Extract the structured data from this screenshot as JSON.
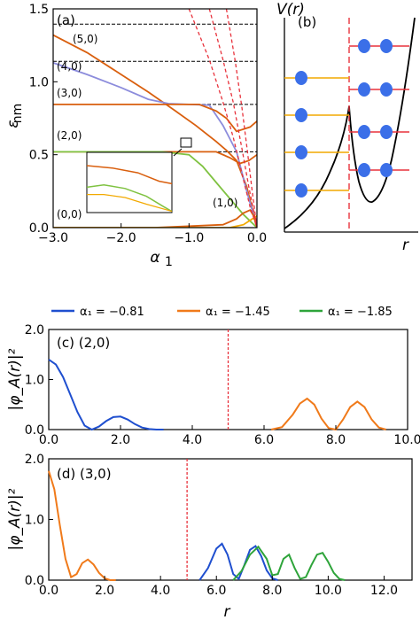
{
  "chart_data": [
    {
      "panel": "(a)",
      "type": "line",
      "xlabel": "α₁",
      "ylabel": "ε_nm",
      "xlim": [
        -3.0,
        0.0
      ],
      "ylim": [
        0,
        1.5
      ],
      "xticks": [
        "−3.0",
        "−2.0",
        "−1.0",
        "0.0"
      ],
      "yticks": [
        "0.0",
        "0.5",
        "1.0",
        "1.5"
      ],
      "level_labels": [
        "(5,0)",
        "(4,0)",
        "(3,0)",
        "(2,0)",
        "(0,0)",
        "(1,0)"
      ],
      "asymptotes": [
        1.395,
        1.14,
        0.845,
        0.52,
        0.0
      ],
      "series": [
        {
          "color": "#d95f0e",
          "x": [
            -3.0,
            -2.5,
            -2.0,
            -1.6,
            -1.2,
            -0.9,
            -0.6,
            -0.45,
            -0.3,
            -0.15,
            0.0
          ],
          "y": [
            1.32,
            1.2,
            1.05,
            0.93,
            0.8,
            0.7,
            0.59,
            0.53,
            0.46,
            0.28,
            0.0
          ]
        },
        {
          "color": "#8c8cdc",
          "x": [
            -3.0,
            -2.5,
            -2.0,
            -1.6,
            -1.3,
            -1.0,
            -0.7,
            -0.5,
            -0.3,
            -0.15,
            0.0
          ],
          "y": [
            1.13,
            1.05,
            0.96,
            0.88,
            0.85,
            0.845,
            0.84,
            0.7,
            0.52,
            0.25,
            0.0
          ]
        },
        {
          "color": "#d95f0e",
          "x": [
            -3.0,
            -1.5,
            -0.85,
            -0.6,
            -0.45,
            -0.3,
            -0.1,
            0.0
          ],
          "y": [
            0.845,
            0.845,
            0.845,
            0.8,
            0.75,
            0.66,
            0.69,
            0.73
          ]
        },
        {
          "color": "#d95f0e",
          "x": [
            -3.0,
            -2.0,
            -1.1,
            -0.6,
            -0.4,
            -0.25,
            -0.12,
            0.0
          ],
          "y": [
            0.52,
            0.52,
            0.52,
            0.52,
            0.48,
            0.44,
            0.46,
            0.5
          ]
        },
        {
          "color": "#7fc241",
          "x": [
            -3.0,
            -2.0,
            -1.4,
            -1.0,
            -0.8,
            -0.6,
            -0.4,
            -0.2,
            0.0
          ],
          "y": [
            0.52,
            0.52,
            0.52,
            0.5,
            0.42,
            0.31,
            0.2,
            0.09,
            0.0
          ]
        },
        {
          "color": "#d95f0e",
          "x": [
            -3.0,
            -1.5,
            -0.5,
            -0.3,
            -0.2,
            -0.1,
            -0.05,
            0.0
          ],
          "y": [
            0.0,
            0.0,
            0.02,
            0.06,
            0.1,
            0.12,
            0.08,
            0.0
          ]
        },
        {
          "color": "#f2a900",
          "x": [
            -3.0,
            -1.0,
            -0.4,
            -0.2,
            -0.1,
            0.0
          ],
          "y": [
            0.0,
            0.0,
            0.0,
            0.02,
            0.05,
            0.08
          ]
        },
        {
          "color": "#e8323c",
          "dashed": true,
          "x": [
            -1.0,
            -0.7,
            -0.5,
            -0.35,
            -0.2,
            -0.1,
            0.0
          ],
          "y": [
            1.5,
            1.15,
            0.86,
            0.62,
            0.33,
            0.14,
            0.0
          ]
        },
        {
          "color": "#e8323c",
          "dashed": true,
          "x": [
            -0.7,
            -0.5,
            -0.35,
            -0.22,
            -0.12,
            0.0
          ],
          "y": [
            1.5,
            1.15,
            0.86,
            0.54,
            0.28,
            0.0
          ]
        },
        {
          "color": "#e8323c",
          "dashed": true,
          "x": [
            -0.45,
            -0.32,
            -0.22,
            -0.14,
            -0.07,
            0.0
          ],
          "y": [
            1.5,
            1.14,
            0.82,
            0.52,
            0.25,
            0.0
          ]
        }
      ]
    },
    {
      "panel": "(b)",
      "type": "diagram",
      "ylabel": "V(r)",
      "xlabel": "r"
    },
    {
      "legend": [
        {
          "label": "α₁ = −0.81",
          "color": "#1f4fcf"
        },
        {
          "label": "α₁ = −1.45",
          "color": "#f07a1a"
        },
        {
          "label": "α₁ = −1.85",
          "color": "#2ea43a"
        }
      ]
    },
    {
      "panel": "(c) (2,0)",
      "type": "line",
      "ylabel": "|φ_A(r)|²",
      "xlim": [
        0,
        10
      ],
      "ylim": [
        0,
        2.0
      ],
      "xticks": [
        "0.0",
        "2.0",
        "4.0",
        "6.0",
        "8.0",
        "10.0"
      ],
      "yticks": [
        "0.0",
        "1.0",
        "2.0"
      ],
      "vline": 5.0,
      "series": [
        {
          "color": "#1f4fcf",
          "x": [
            0.0,
            0.2,
            0.4,
            0.6,
            0.8,
            1.0,
            1.2,
            1.4,
            1.6,
            1.8,
            2.0,
            2.2,
            2.4,
            2.6,
            2.8,
            3.0,
            3.2
          ],
          "y": [
            1.4,
            1.3,
            1.05,
            0.7,
            0.35,
            0.08,
            0.0,
            0.06,
            0.17,
            0.25,
            0.26,
            0.2,
            0.11,
            0.04,
            0.01,
            0.0,
            0.0
          ]
        },
        {
          "color": "#f07a1a",
          "x": [
            6.2,
            6.5,
            6.8,
            7.0,
            7.2,
            7.4,
            7.6,
            7.8,
            8.0,
            8.2,
            8.4,
            8.6,
            8.8,
            9.0,
            9.2,
            9.4
          ],
          "y": [
            0.0,
            0.05,
            0.3,
            0.52,
            0.62,
            0.5,
            0.22,
            0.03,
            0.0,
            0.2,
            0.45,
            0.56,
            0.45,
            0.2,
            0.04,
            0.0
          ]
        }
      ]
    },
    {
      "panel": "(d) (3,0)",
      "type": "line",
      "ylabel": "|φ_A(r)|²",
      "xlim": [
        0,
        13
      ],
      "ylim": [
        0,
        2.0
      ],
      "xticks": [
        "0.0",
        "2.0",
        "4.0",
        "6.0",
        "8.0",
        "10.0",
        "12.0"
      ],
      "yticks": [
        "0.0",
        "1.0",
        "2.0"
      ],
      "vline": 4.95,
      "series": [
        {
          "color": "#f07a1a",
          "x": [
            0.0,
            0.2,
            0.4,
            0.6,
            0.8,
            1.0,
            1.2,
            1.4,
            1.6,
            1.8,
            2.0,
            2.2,
            2.4
          ],
          "y": [
            1.8,
            1.5,
            0.9,
            0.35,
            0.05,
            0.1,
            0.28,
            0.34,
            0.26,
            0.12,
            0.03,
            0.0,
            0.0
          ]
        },
        {
          "color": "#1f4fcf",
          "x": [
            5.4,
            5.7,
            6.0,
            6.2,
            6.4,
            6.6,
            6.8,
            7.0,
            7.2,
            7.4,
            7.6,
            7.8,
            8.0,
            8.2
          ],
          "y": [
            0.0,
            0.2,
            0.52,
            0.6,
            0.42,
            0.1,
            0.02,
            0.25,
            0.5,
            0.56,
            0.4,
            0.16,
            0.03,
            0.0
          ]
        },
        {
          "color": "#2ea43a",
          "x": [
            6.6,
            6.9,
            7.2,
            7.5,
            7.8,
            8.0,
            8.2,
            8.4,
            8.6,
            8.8,
            9.0,
            9.2,
            9.4,
            9.6,
            9.8,
            10.0,
            10.2,
            10.4,
            10.6
          ],
          "y": [
            0.0,
            0.15,
            0.42,
            0.55,
            0.35,
            0.08,
            0.1,
            0.35,
            0.42,
            0.2,
            0.02,
            0.05,
            0.25,
            0.42,
            0.45,
            0.3,
            0.12,
            0.02,
            0.0
          ]
        }
      ]
    }
  ]
}
